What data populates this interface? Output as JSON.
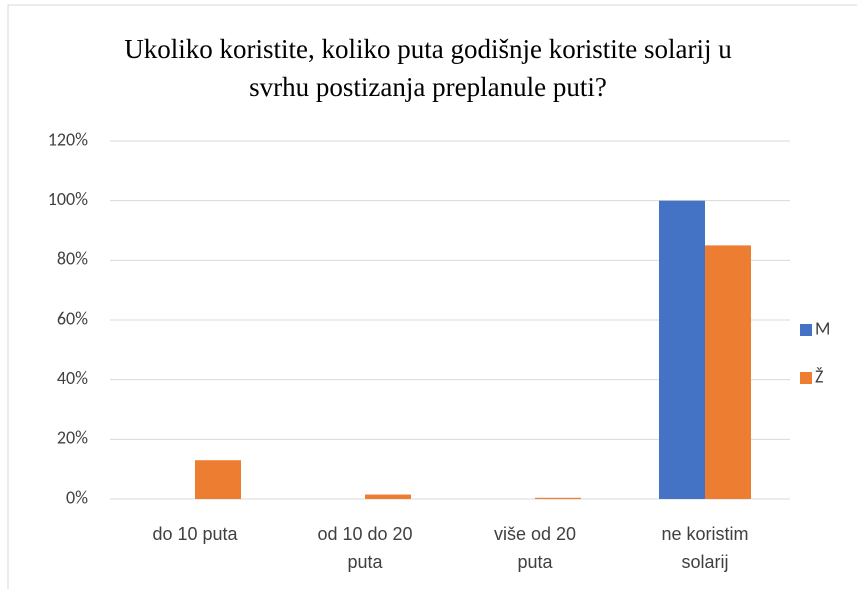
{
  "chart_data": {
    "type": "bar",
    "title": "Ukoliko koristite, koliko puta godišnje koristite solarij u svrhu postizanja preplanule puti?",
    "categories": [
      "do 10 puta",
      "od 10 do 20 puta",
      "više od 20 puta",
      "ne koristim solarij"
    ],
    "series": [
      {
        "name": "M",
        "color": "#4472c4",
        "values": [
          0,
          0,
          0,
          100
        ]
      },
      {
        "name": "Ž",
        "color": "#ed7d31",
        "values": [
          13,
          1.5,
          0.4,
          85
        ]
      }
    ],
    "ylim": [
      0,
      120
    ],
    "yticks": [
      {
        "value": 0,
        "label": "0%"
      },
      {
        "value": 20,
        "label": "20%"
      },
      {
        "value": 40,
        "label": "40%"
      },
      {
        "value": 60,
        "label": "60%"
      },
      {
        "value": 80,
        "label": "80%"
      },
      {
        "value": 100,
        "label": "100%"
      },
      {
        "value": 120,
        "label": "120%"
      }
    ],
    "grid": true,
    "legend": "right"
  }
}
